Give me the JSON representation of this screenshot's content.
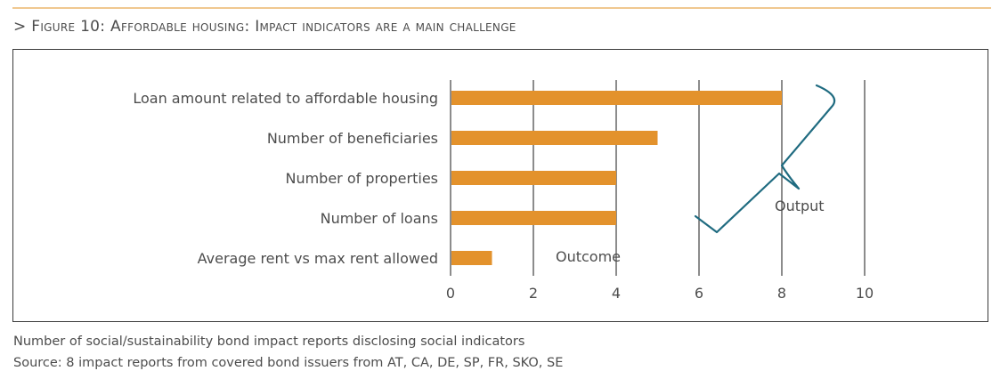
{
  "header": {
    "title": "> Figure 10: Affordable housing: Impact indicators are a main challenge"
  },
  "chart_data": {
    "type": "bar",
    "orientation": "horizontal",
    "title": "Figure 10: Affordable housing: Impact indicators are a main challenge",
    "categories": [
      "Loan amount related to affordable housing",
      "Number of beneficiaries",
      "Number of properties",
      "Number of loans",
      "Average rent vs max rent allowed"
    ],
    "values": [
      8,
      5,
      4,
      4,
      1
    ],
    "xlim": [
      0,
      10
    ],
    "xticks": [
      "0",
      "2",
      "4",
      "6",
      "8",
      "10"
    ],
    "grid": "vertical",
    "bar_color": "#e3922c",
    "annotations": [
      "Outcome",
      "Output"
    ],
    "annotation_color": "#1f6b80"
  },
  "footer": {
    "note": "Number of social/sustainability bond impact reports disclosing social indicators",
    "source": "Source: 8 impact reports from covered bond issuers from AT, CA, DE, SP, FR, SKO, SE"
  }
}
